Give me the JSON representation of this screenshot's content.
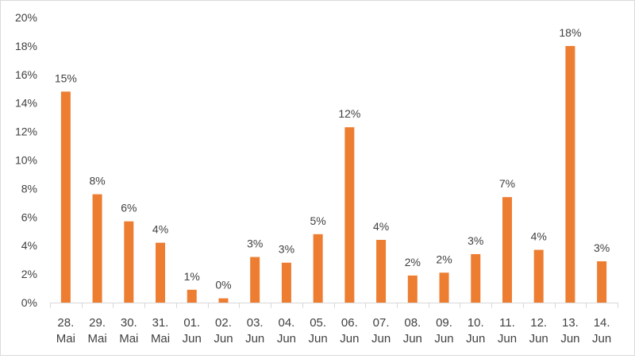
{
  "chart_data": {
    "type": "bar",
    "title": "",
    "xlabel": "",
    "ylabel": "",
    "ylim": [
      0,
      20
    ],
    "y_ticks": [
      "0%",
      "2%",
      "4%",
      "6%",
      "8%",
      "10%",
      "12%",
      "14%",
      "16%",
      "18%",
      "20%"
    ],
    "y_tick_values": [
      0,
      2,
      4,
      6,
      8,
      10,
      12,
      14,
      16,
      18,
      20
    ],
    "grid": false,
    "legend": "none",
    "categories": [
      {
        "day": "28.",
        "month": "Mai"
      },
      {
        "day": "29.",
        "month": "Mai"
      },
      {
        "day": "30.",
        "month": "Mai"
      },
      {
        "day": "31.",
        "month": "Mai"
      },
      {
        "day": "01.",
        "month": "Jun"
      },
      {
        "day": "02.",
        "month": "Jun"
      },
      {
        "day": "03.",
        "month": "Jun"
      },
      {
        "day": "04.",
        "month": "Jun"
      },
      {
        "day": "05.",
        "month": "Jun"
      },
      {
        "day": "06.",
        "month": "Jun"
      },
      {
        "day": "07.",
        "month": "Jun"
      },
      {
        "day": "08.",
        "month": "Jun"
      },
      {
        "day": "09.",
        "month": "Jun"
      },
      {
        "day": "10.",
        "month": "Jun"
      },
      {
        "day": "11.",
        "month": "Jun"
      },
      {
        "day": "12.",
        "month": "Jun"
      },
      {
        "day": "13.",
        "month": "Jun"
      },
      {
        "day": "14.",
        "month": "Jun"
      }
    ],
    "values": [
      14.8,
      7.6,
      5.7,
      4.2,
      0.9,
      0.3,
      3.2,
      2.8,
      4.8,
      12.3,
      4.4,
      1.9,
      2.1,
      3.4,
      7.4,
      3.7,
      18.0,
      2.9
    ],
    "data_labels": [
      "15%",
      "8%",
      "6%",
      "4%",
      "1%",
      "0%",
      "3%",
      "3%",
      "5%",
      "12%",
      "4%",
      "2%",
      "2%",
      "3%",
      "7%",
      "4%",
      "18%",
      "3%"
    ],
    "colors": {
      "bar": "#ED7D31",
      "axis": "#D9D9D9",
      "text": "#404040"
    }
  }
}
